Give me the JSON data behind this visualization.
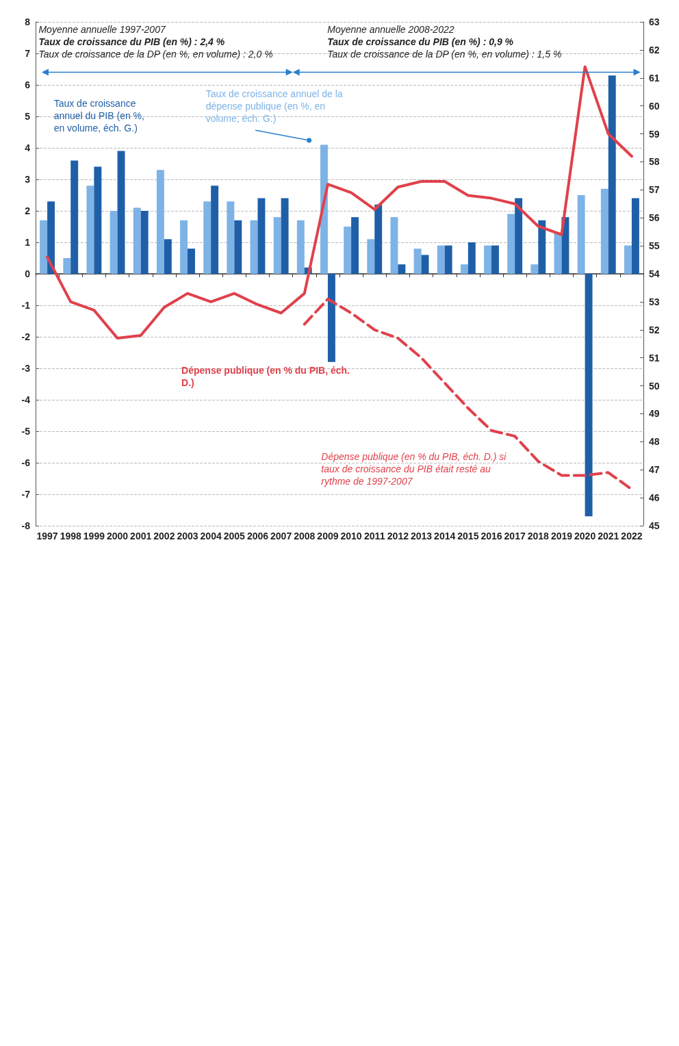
{
  "chart_data": {
    "type": "bar",
    "categories": [
      "1997",
      "1998",
      "1999",
      "2000",
      "2001",
      "2002",
      "2003",
      "2004",
      "2005",
      "2006",
      "2007",
      "2008",
      "2009",
      "2010",
      "2011",
      "2012",
      "2013",
      "2014",
      "2015",
      "2016",
      "2017",
      "2018",
      "2019",
      "2020",
      "2021",
      "2022"
    ],
    "series": [
      {
        "name": "Taux de croissance annuel de la dépense publique (en %, en volume, éch. G.)",
        "color": "#7db3e6",
        "values": [
          1.7,
          0.5,
          2.8,
          2.0,
          2.1,
          3.3,
          1.7,
          2.3,
          2.3,
          1.7,
          1.8,
          1.7,
          4.1,
          1.5,
          1.1,
          1.8,
          0.8,
          0.9,
          0.3,
          0.9,
          1.9,
          0.3,
          1.3,
          2.5,
          2.7,
          0.9
        ]
      },
      {
        "name": "Taux de croissance annuel du PIB (en %, en volume, éch. G.)",
        "color": "#1f5fa8",
        "values": [
          2.3,
          3.6,
          3.4,
          3.9,
          2.0,
          1.1,
          0.8,
          2.8,
          1.7,
          2.4,
          2.4,
          0.2,
          -2.8,
          1.8,
          2.2,
          0.3,
          0.6,
          0.9,
          1.0,
          0.9,
          2.4,
          1.7,
          1.8,
          -7.7,
          6.3,
          2.4
        ]
      },
      {
        "name": "Dépense publique (en % du PIB, éch. D.)",
        "type": "line",
        "axis": "y2",
        "color": "#e0414b",
        "values": [
          54.6,
          53.0,
          52.7,
          51.7,
          51.8,
          52.8,
          53.3,
          53.0,
          53.3,
          52.9,
          52.6,
          53.3,
          57.2,
          56.9,
          56.3,
          57.1,
          57.3,
          57.3,
          56.8,
          56.7,
          56.5,
          55.7,
          55.4,
          61.4,
          59.0,
          58.2
        ]
      },
      {
        "name": "Dépense publique (en % du PIB, éch. D.) si taux de croissance du PIB était resté au rythme de 1997-2007",
        "type": "line",
        "axis": "y2",
        "color": "#e0414b",
        "line_style": "dashed",
        "values": [
          null,
          null,
          null,
          null,
          null,
          null,
          null,
          null,
          null,
          null,
          null,
          52.2,
          53.1,
          52.6,
          52.0,
          51.7,
          51.0,
          50.1,
          49.2,
          48.4,
          48.2,
          47.3,
          46.8,
          46.8,
          46.9,
          46.3
        ]
      }
    ],
    "ylim": [
      -8,
      8
    ],
    "yticks": [
      -8,
      -7,
      -6,
      -5,
      -4,
      -3,
      -2,
      -1,
      0,
      1,
      2,
      3,
      4,
      5,
      6,
      7,
      8
    ],
    "y2lim": [
      45,
      63
    ],
    "y2ticks": [
      45,
      46,
      47,
      48,
      49,
      50,
      51,
      52,
      53,
      54,
      55,
      56,
      57,
      58,
      59,
      60,
      61,
      62,
      63
    ],
    "grid": "y",
    "marker": "none",
    "annotations": [
      "Moyenne annuelle 1997-2007",
      "Taux de croissance du PIB (en %) : 2,4 %",
      "Taux de croissance de la DP (en %, en volume) : 2,0 %",
      "Moyenne annuelle 2008-2022",
      "Taux de croissance du PIB (en %) : 0,9 %",
      "Taux de croissance de la DP (en %, en volume) : 1,5 %"
    ]
  }
}
